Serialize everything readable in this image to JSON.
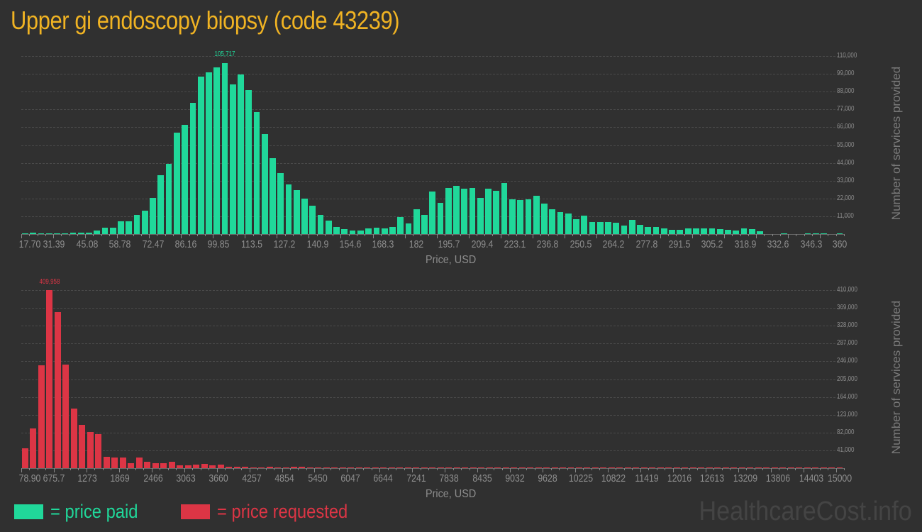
{
  "title": "Upper gi endoscopy biopsy (code 43239)",
  "colors": {
    "background": "#303030",
    "title": "#f0b323",
    "paid": "#20d89a",
    "requested": "#dc3545",
    "grid": "#4a4a4a",
    "axis_text": "#8d8d8d",
    "watermark": "#444444"
  },
  "legend": {
    "paid_label": "= price paid",
    "requested_label": "= price requested"
  },
  "watermark": "HealthcareCost.info",
  "chart_data": [
    {
      "type": "bar",
      "title": "Price paid",
      "xlabel": "Price, USD",
      "ylabel": "Number of services provided",
      "ylim": [
        0,
        110000
      ],
      "grid": true,
      "legend_position": "bottom",
      "peak_label": "105,717",
      "ytick_labels": [
        "110,000",
        "99,000",
        "88,000",
        "77,000",
        "66,000",
        "55,000",
        "44,000",
        "33,000",
        "22,000",
        "11,000"
      ],
      "ytick_values": [
        110000,
        99000,
        88000,
        77000,
        66000,
        55000,
        44000,
        33000,
        22000,
        11000
      ],
      "xtick_labels": [
        "17.70",
        "31.39",
        "45.08",
        "58.78",
        "72.47",
        "86.16",
        "99.85",
        "113.5",
        "127.2",
        "140.9",
        "154.6",
        "168.3",
        "182",
        "195.7",
        "209.4",
        "223.1",
        "236.8",
        "250.5",
        "264.2",
        "277.8",
        "291.5",
        "305.2",
        "318.9",
        "332.6",
        "346.3",
        "360"
      ],
      "xrange": [
        17.7,
        360
      ],
      "values": [
        300,
        700,
        600,
        400,
        300,
        300,
        900,
        900,
        900,
        2200,
        3800,
        3800,
        8100,
        8100,
        11900,
        14300,
        22500,
        36500,
        43500,
        62500,
        67500,
        81000,
        97500,
        99800,
        103000,
        105717,
        92500,
        98500,
        89000,
        75200,
        62000,
        46800,
        37500,
        30800,
        27000,
        22000,
        17600,
        11800,
        8400,
        4200,
        2900,
        2000,
        2100,
        3300,
        3800,
        3300,
        4500,
        10400,
        6400,
        15400,
        12000,
        26200,
        19100,
        28500,
        29900,
        28100,
        28400,
        22300,
        28200,
        26600,
        31500,
        21600,
        20900,
        21600,
        23500,
        18800,
        15500,
        13800,
        12700,
        9100,
        11300,
        7600,
        7600,
        7600,
        7000,
        5200,
        8600,
        5600,
        4300,
        4600,
        3500,
        2500,
        2600,
        3600,
        3600,
        3600,
        3600,
        3100,
        2500,
        2100,
        3600,
        3100,
        1600,
        0,
        0,
        500,
        0,
        0,
        200,
        200,
        200,
        0,
        200
      ]
    },
    {
      "type": "bar",
      "title": "Price requested",
      "xlabel": "Price, USD",
      "ylabel": "Number of services provided",
      "ylim": [
        0,
        410000
      ],
      "grid": true,
      "peak_label": "409,958",
      "ytick_labels": [
        "410,000",
        "369,000",
        "328,000",
        "287,000",
        "246,000",
        "205,000",
        "164,000",
        "123,000",
        "82,000",
        "41,000"
      ],
      "ytick_values": [
        410000,
        369000,
        328000,
        287000,
        246000,
        205000,
        164000,
        123000,
        82000,
        41000
      ],
      "xtick_labels": [
        "78.90",
        "675.7",
        "1273",
        "1869",
        "2466",
        "3063",
        "3660",
        "4257",
        "4854",
        "5450",
        "6047",
        "6644",
        "7241",
        "7838",
        "8435",
        "9032",
        "9628",
        "10225",
        "10822",
        "11419",
        "12016",
        "12613",
        "13209",
        "13806",
        "14403",
        "15000"
      ],
      "xrange": [
        78.9,
        15000
      ],
      "values": [
        46000,
        91000,
        237000,
        409958,
        359000,
        238000,
        137000,
        99000,
        84000,
        78000,
        26000,
        24000,
        24000,
        12000,
        24000,
        15000,
        12000,
        12000,
        15000,
        6000,
        6000,
        8000,
        10000,
        6000,
        8000,
        4000,
        4000,
        4000,
        2000,
        2000,
        3000,
        2000,
        2000,
        3000,
        3000,
        2000,
        2000,
        1500,
        1500,
        1500,
        1000,
        1000,
        1000,
        1000,
        1000,
        1000,
        1000,
        1000,
        2000,
        1000,
        2000,
        1000,
        1000,
        1000,
        1000,
        1000,
        1000,
        1000,
        500,
        500,
        500,
        500,
        1000,
        500,
        1000,
        500,
        500,
        500,
        500,
        500,
        500,
        1000,
        500,
        500,
        500,
        500,
        500,
        500,
        500,
        1000,
        500,
        500,
        500,
        500,
        500,
        500,
        1000,
        500,
        1000,
        1000,
        500,
        500,
        500,
        500,
        500,
        500,
        500,
        500,
        500,
        500,
        1000
      ]
    }
  ]
}
